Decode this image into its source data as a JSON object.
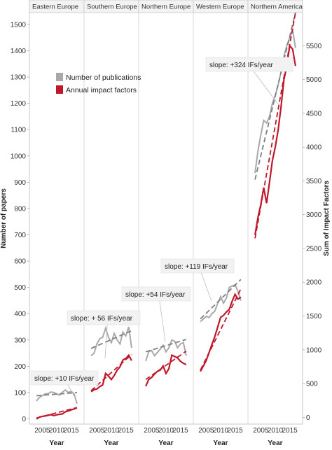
{
  "chart_data": {
    "type": "line",
    "regions": [
      "Eastern Europe",
      "Southern Europe",
      "Northern Europe",
      "Western Europe",
      "Northern America"
    ],
    "x_ticks": [
      "2005",
      "2010",
      "2015"
    ],
    "x_label": "Year",
    "y_left_label": "Number of papers",
    "y_right_label": "Sum of Impact Factors",
    "y_left_ticks": [
      0,
      100,
      200,
      300,
      400,
      500,
      600,
      700,
      800,
      900,
      1000,
      1100,
      1200,
      1300,
      1400,
      1500
    ],
    "y_left_range": [
      -20,
      1545
    ],
    "y_right_ticks": [
      0,
      500,
      1000,
      1500,
      2000,
      2500,
      3000,
      3500,
      4000,
      4500,
      5000,
      5500
    ],
    "y_right_range": [
      -100,
      5990
    ],
    "x_range": [
      2002,
      2018
    ],
    "legend": {
      "position": "left",
      "items": [
        {
          "label": "Number of publications",
          "color": "#a7a9ac"
        },
        {
          "label": "Annual impact factors",
          "color": "#c0182a"
        }
      ]
    },
    "colors": {
      "publications": "#a7a9ac",
      "impact_factors": "#c0182a",
      "trend_pubs": "#7e7f82",
      "trend_if": "#c0182a"
    },
    "annotations": [
      "slope: +10 IFs/year",
      "slope: + 56 IFs/year",
      "slope: +54 IFs/year",
      "slope: +119 IFs/year",
      "slope: +324 IFs/year"
    ],
    "series": [
      {
        "region": "Eastern Europe",
        "x": [
          2003,
          2004,
          2005,
          2006,
          2007,
          2008,
          2009,
          2010,
          2011,
          2012,
          2013,
          2014,
          2015,
          2016,
          2017
        ],
        "publications": [
          68,
          82,
          88,
          95,
          96,
          102,
          100,
          95,
          90,
          102,
          110,
          100,
          105,
          95,
          58
        ],
        "impact_factors": [
          -25,
          5,
          15,
          20,
          30,
          40,
          25,
          38,
          45,
          52,
          82,
          95,
          110,
          125,
          140
        ],
        "pubs_trend": [
          88,
          100
        ],
        "if_trend": [
          -10,
          145
        ]
      },
      {
        "region": "Southern Europe",
        "x": [
          2003,
          2004,
          2005,
          2006,
          2007,
          2008,
          2009,
          2010,
          2011,
          2012,
          2013,
          2014,
          2015,
          2016,
          2017
        ],
        "publications": [
          240,
          250,
          285,
          305,
          310,
          345,
          310,
          290,
          325,
          300,
          285,
          330,
          315,
          350,
          270
        ],
        "impact_factors": [
          380,
          410,
          420,
          455,
          480,
          650,
          610,
          560,
          620,
          700,
          750,
          850,
          870,
          920,
          840
        ],
        "pubs_trend": [
          268,
          335
        ],
        "if_trend": [
          395,
          930
        ]
      },
      {
        "region": "Northern Europe",
        "x": [
          2003,
          2004,
          2005,
          2006,
          2007,
          2008,
          2009,
          2010,
          2011,
          2012,
          2013,
          2014,
          2015,
          2016,
          2017
        ],
        "publications": [
          220,
          255,
          260,
          240,
          252,
          265,
          280,
          255,
          270,
          300,
          295,
          270,
          285,
          290,
          240
        ],
        "impact_factors": [
          460,
          560,
          590,
          640,
          680,
          700,
          760,
          650,
          720,
          920,
          900,
          880,
          830,
          800,
          780
        ],
        "pubs_trend": [
          255,
          302
        ],
        "if_trend": [
          560,
          980
        ]
      },
      {
        "region": "Western Europe",
        "x": [
          2003,
          2004,
          2005,
          2006,
          2007,
          2008,
          2009,
          2010,
          2011,
          2012,
          2013,
          2014,
          2015,
          2016,
          2017
        ],
        "publications": [
          370,
          380,
          390,
          385,
          400,
          410,
          440,
          465,
          440,
          460,
          500,
          505,
          510,
          485,
          450
        ],
        "impact_factors": [
          680,
          760,
          840,
          960,
          1080,
          1200,
          1340,
          1480,
          1510,
          1560,
          1600,
          1720,
          1820,
          1750,
          1780
        ],
        "pubs_trend": [
          380,
          530
        ],
        "if_trend": [
          700,
          1900
        ]
      },
      {
        "region": "Northern America",
        "x": [
          2003,
          2004,
          2005,
          2006,
          2007,
          2008,
          2009,
          2010,
          2011,
          2012,
          2013,
          2014,
          2015,
          2016,
          2017
        ],
        "publications": [
          935,
          1020,
          1080,
          1135,
          1125,
          1150,
          1200,
          1230,
          1270,
          1320,
          1380,
          1420,
          1450,
          1480,
          1410
        ],
        "impact_factors": [
          2700,
          2960,
          3150,
          3400,
          3170,
          3480,
          3800,
          4000,
          4250,
          4600,
          5000,
          5200,
          5500,
          5450,
          5200
        ],
        "pubs_trend": [
          910,
          1545
        ],
        "if_trend": [
          2650,
          5990
        ]
      }
    ]
  }
}
